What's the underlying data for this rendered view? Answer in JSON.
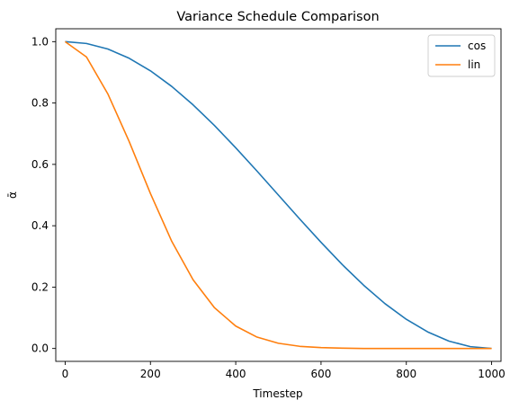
{
  "chart_data": {
    "type": "line",
    "title": "Variance Schedule Comparison",
    "xlabel": "Timestep",
    "ylabel": "ᾱ",
    "xlim": [
      -22,
      1022
    ],
    "ylim": [
      -0.042,
      1.042
    ],
    "xticks": [
      0,
      200,
      400,
      600,
      800,
      1000
    ],
    "xtick_labels": [
      "0",
      "200",
      "400",
      "600",
      "800",
      "1000"
    ],
    "yticks": [
      0.0,
      0.2,
      0.4,
      0.6,
      0.8,
      1.0
    ],
    "ytick_labels": [
      "0.0",
      "0.2",
      "0.4",
      "0.6",
      "0.8",
      "1.0"
    ],
    "grid": false,
    "legend_position": "top-right",
    "x": [
      0,
      50,
      100,
      150,
      200,
      250,
      300,
      350,
      400,
      450,
      500,
      550,
      600,
      650,
      700,
      750,
      800,
      850,
      900,
      950,
      1000
    ],
    "series": [
      {
        "name": "cos",
        "color": "#1f77b4",
        "values": [
          1.0,
          0.994,
          0.976,
          0.946,
          0.905,
          0.854,
          0.794,
          0.727,
          0.654,
          0.578,
          0.5,
          0.422,
          0.346,
          0.273,
          0.206,
          0.146,
          0.095,
          0.054,
          0.024,
          0.006,
          0.0
        ]
      },
      {
        "name": "lin",
        "color": "#ff7f0e",
        "values": [
          1.0,
          0.95,
          0.83,
          0.675,
          0.505,
          0.349,
          0.224,
          0.133,
          0.073,
          0.037,
          0.017,
          0.007,
          0.003,
          0.001,
          0.0,
          0.0,
          0.0,
          0.0,
          0.0,
          0.0,
          0.0
        ]
      }
    ]
  }
}
